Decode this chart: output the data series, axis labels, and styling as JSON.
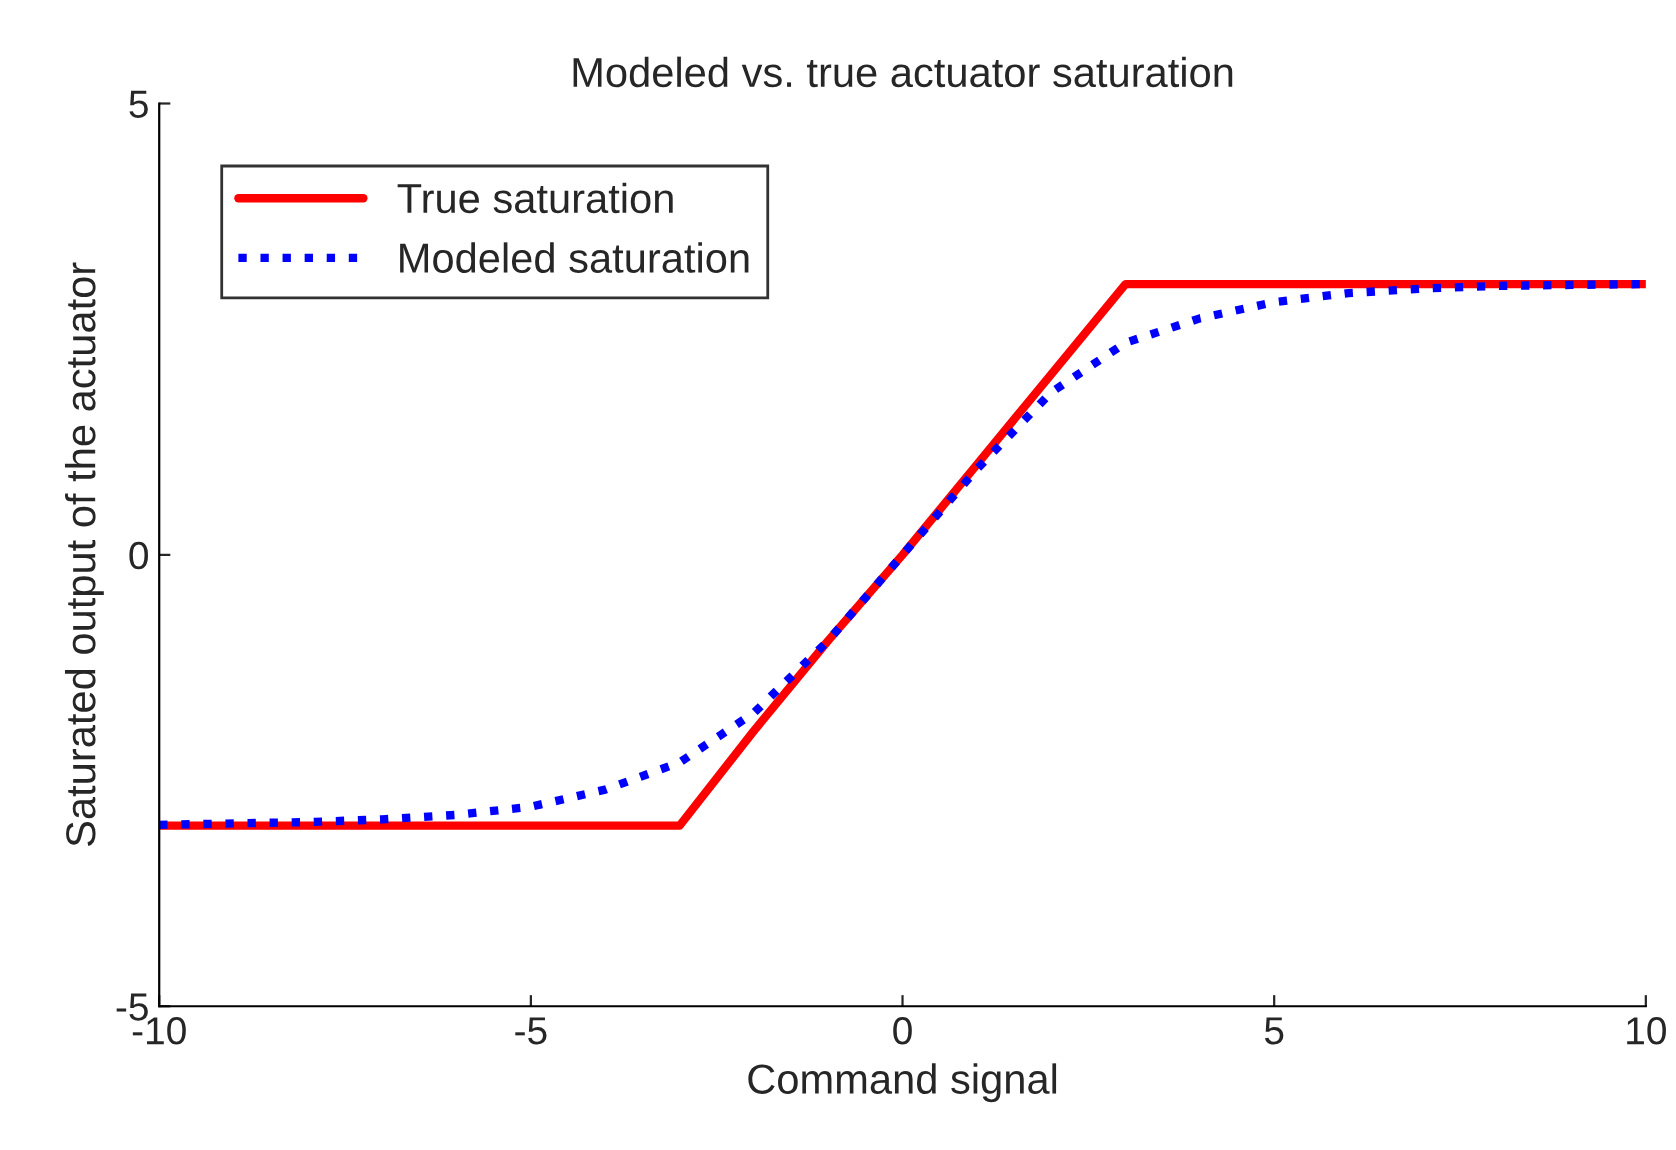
{
  "chart_data": {
    "type": "line",
    "title": "Modeled vs. true actuator saturation",
    "xlabel": "Command signal",
    "ylabel": "Saturated output of the actuator",
    "xlim": [
      -10,
      10
    ],
    "ylim": [
      -5,
      5
    ],
    "xticks": [
      -10,
      -5,
      0,
      5,
      10
    ],
    "yticks": [
      -5,
      0,
      5
    ],
    "grid": false,
    "legend": "top left",
    "series": [
      {
        "name": "True saturation",
        "color": "#ff0000",
        "line_style": "solid",
        "x": [
          -10,
          -3,
          -2,
          -1,
          0,
          1,
          2,
          3,
          10
        ],
        "values": [
          -3,
          -3,
          -1.95,
          -0.95,
          0,
          1,
          2,
          3,
          3
        ]
      },
      {
        "name": "Modeled saturation",
        "color": "#0000ff",
        "line_style": "dotted",
        "x": [
          -10,
          -8,
          -7,
          -6,
          -5,
          -4,
          -3,
          -2,
          -1,
          0,
          1,
          2,
          3,
          4,
          5,
          6,
          7,
          8,
          10
        ],
        "values": [
          -2.99,
          -2.96,
          -2.93,
          -2.88,
          -2.79,
          -2.6,
          -2.3,
          -1.75,
          -0.95,
          0,
          0.95,
          1.8,
          2.35,
          2.62,
          2.8,
          2.9,
          2.95,
          2.98,
          3
        ]
      }
    ]
  }
}
